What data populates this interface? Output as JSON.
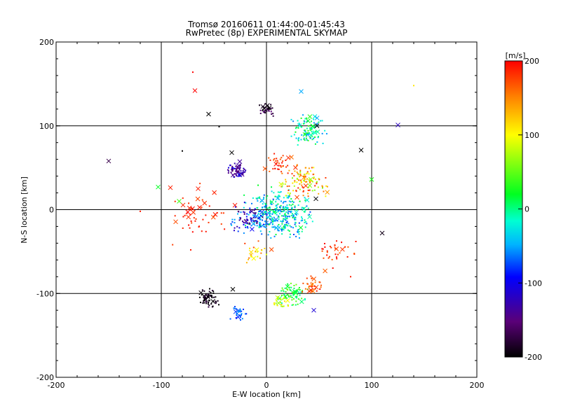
{
  "chart_data": {
    "type": "scatter",
    "title": "Tromsø 20160611 01:44:00-01:45:43",
    "subtitle": "RwPretec (8p) EXPERIMENTAL SKYMAP",
    "xlabel": "E-W location [km]",
    "ylabel": "N-S location [km]",
    "xlim": [
      -200,
      200
    ],
    "ylim": [
      -200,
      200
    ],
    "x_ticks": [
      -200,
      -100,
      0,
      100,
      200
    ],
    "y_ticks": [
      -200,
      -100,
      0,
      100,
      200
    ],
    "x_tick_labels": [
      "-200",
      "-100",
      "0",
      "100",
      "200"
    ],
    "y_tick_labels": [
      "-200",
      "-100",
      "0",
      "100",
      "200"
    ],
    "grid_lines": [
      -100,
      0,
      100
    ],
    "colorbar": {
      "label": "[m/s]",
      "range": [
        -200,
        200
      ],
      "ticks": [
        200,
        100,
        0,
        -100,
        -200
      ],
      "tick_labels": [
        "200",
        "100",
        "0",
        "-100",
        "-200"
      ],
      "colormap": "black-purple-blue-cyan-green-yellow-red"
    },
    "clusters": [
      {
        "x": -28,
        "y": 46,
        "spread": 7,
        "n": 60,
        "vmin": -160,
        "vmax": -100,
        "crosses": 8
      },
      {
        "x": -55,
        "y": -106,
        "spread": 7,
        "n": 70,
        "vmin": -220,
        "vmax": -170,
        "crosses": 4
      },
      {
        "x": -25,
        "y": -124,
        "spread": 6,
        "n": 25,
        "vmin": -90,
        "vmax": -50,
        "crosses": 3
      },
      {
        "x": 12,
        "y": -5,
        "spread": 22,
        "n": 320,
        "vmin": -80,
        "vmax": 20,
        "crosses": 14
      },
      {
        "x": -15,
        "y": -10,
        "spread": 14,
        "n": 90,
        "vmin": -160,
        "vmax": -40,
        "crosses": 6
      },
      {
        "x": 40,
        "y": 95,
        "spread": 14,
        "n": 90,
        "vmin": -60,
        "vmax": 40,
        "crosses": 12
      },
      {
        "x": 0,
        "y": 120,
        "spread": 6,
        "n": 30,
        "vmin": -200,
        "vmax": -150,
        "crosses": 4
      },
      {
        "x": 35,
        "y": 35,
        "spread": 16,
        "n": 110,
        "vmin": 60,
        "vmax": 190,
        "crosses": 8
      },
      {
        "x": 25,
        "y": -100,
        "spread": 10,
        "n": 70,
        "vmin": -20,
        "vmax": 60,
        "crosses": 8
      },
      {
        "x": 45,
        "y": -90,
        "spread": 7,
        "n": 30,
        "vmin": 150,
        "vmax": 200,
        "crosses": 5
      },
      {
        "x": 15,
        "y": -110,
        "spread": 6,
        "n": 20,
        "vmin": 60,
        "vmax": 120,
        "crosses": 3
      },
      {
        "x": 65,
        "y": -50,
        "spread": 14,
        "n": 30,
        "vmin": 160,
        "vmax": 200,
        "crosses": 3
      },
      {
        "x": -70,
        "y": -5,
        "spread": 25,
        "n": 35,
        "vmin": 170,
        "vmax": 200,
        "crosses": 15
      },
      {
        "x": 10,
        "y": 55,
        "spread": 10,
        "n": 30,
        "vmin": 150,
        "vmax": 200,
        "crosses": 4
      },
      {
        "x": -10,
        "y": -50,
        "spread": 10,
        "n": 20,
        "vmin": 90,
        "vmax": 180,
        "crosses": 4
      }
    ],
    "isolated_crosses": [
      {
        "x": -150,
        "y": 58,
        "v": -170
      },
      {
        "x": -103,
        "y": 27,
        "v": 20
      },
      {
        "x": -68,
        "y": 142,
        "v": 200
      },
      {
        "x": -55,
        "y": 114,
        "v": -210
      },
      {
        "x": -65,
        "y": 25,
        "v": 190
      },
      {
        "x": -33,
        "y": 68,
        "v": -210
      },
      {
        "x": 125,
        "y": 101,
        "v": -120
      },
      {
        "x": 90,
        "y": 71,
        "v": -210
      },
      {
        "x": 110,
        "y": -28,
        "v": -190
      },
      {
        "x": 100,
        "y": 36,
        "v": 30
      },
      {
        "x": 33,
        "y": 141,
        "v": -50
      },
      {
        "x": 45,
        "y": -120,
        "v": -110
      },
      {
        "x": -32,
        "y": -95,
        "v": -210
      },
      {
        "x": 48,
        "y": 100,
        "v": -210
      },
      {
        "x": -83,
        "y": 10,
        "v": 40
      },
      {
        "x": 47,
        "y": 13,
        "v": -200
      }
    ],
    "isolated_dots": [
      {
        "x": 140,
        "y": 148,
        "v": 110
      },
      {
        "x": -70,
        "y": 164,
        "v": 200
      },
      {
        "x": -45,
        "y": 99,
        "v": -210
      },
      {
        "x": -80,
        "y": 70,
        "v": -210
      },
      {
        "x": -120,
        "y": -2,
        "v": 190
      },
      {
        "x": -72,
        "y": -48,
        "v": 190
      },
      {
        "x": 80,
        "y": -80,
        "v": 190
      },
      {
        "x": 85,
        "y": -38,
        "v": 190
      }
    ]
  }
}
